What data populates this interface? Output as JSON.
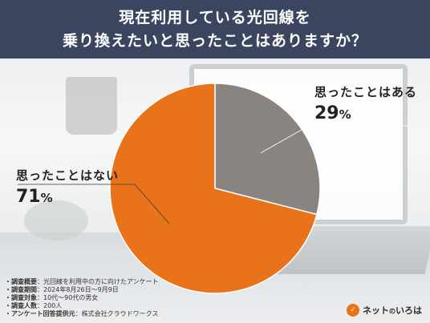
{
  "header": {
    "line1": "現在利用している光回線を",
    "line2": "乗り換えたいと思ったことはありますか？"
  },
  "chart_data": {
    "type": "pie",
    "title": "現在利用している光回線を乗り換えたいと思ったことはありますか？",
    "slices": [
      {
        "label": "思ったことはある",
        "value": 29,
        "display_value": "29",
        "unit": "%",
        "color": "#8a8480"
      },
      {
        "label": "思ったことはない",
        "value": 71,
        "display_value": "71",
        "unit": "%",
        "color": "#e8731a"
      }
    ]
  },
  "notes": [
    {
      "key": "・調査概要",
      "value": "：光回線を利用中の方に向けたアンケート"
    },
    {
      "key": "・調査期間",
      "value": "：2024年8月26日～9月9日"
    },
    {
      "key": "・調査対象",
      "value": "：10代～90代の男女"
    },
    {
      "key": "・調査人数",
      "value": "：200人"
    },
    {
      "key": "・アンケート回答提供元",
      "value": "：株式会社クラウドワークス"
    }
  ],
  "logo": {
    "mark": "✓",
    "name_main": "ネット",
    "name_small": "の",
    "name_end": "いろは"
  }
}
